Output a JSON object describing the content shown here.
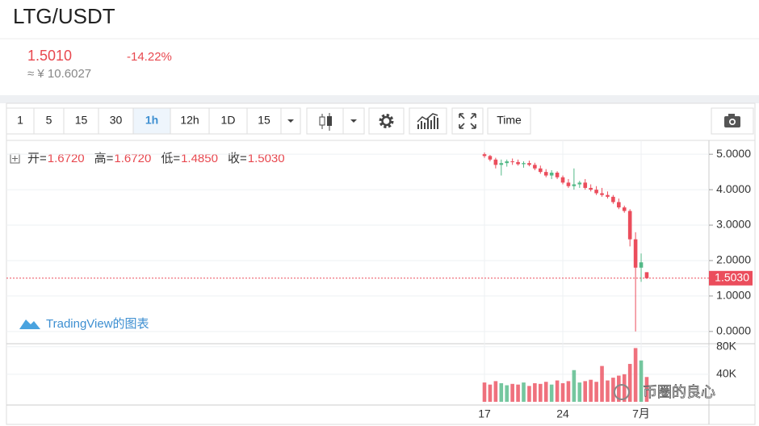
{
  "header": {
    "title": "LTG/USDT",
    "price": "1.5010",
    "change": "-14.22%",
    "fiat": "≈ ¥ 10.6027"
  },
  "toolbar": {
    "intervals": [
      "1",
      "5",
      "15",
      "30",
      "1h",
      "12h",
      "1D",
      "15"
    ],
    "active": 4,
    "time_button": "Time"
  },
  "ohlc_legend": {
    "open_label": "开=",
    "open": "1.6720",
    "high_label": "高=",
    "high": "1.6720",
    "low_label": "低=",
    "low": "1.4850",
    "close_label": "收=",
    "close": "1.5030"
  },
  "watermark": "TradingView的图表",
  "wechat_mark": "币圈的良心",
  "chart_data": {
    "type": "candlestick",
    "categories": [
      "17",
      null,
      null,
      null,
      null,
      null,
      null,
      null,
      null,
      null,
      null,
      null,
      null,
      null,
      "24",
      null,
      null,
      null,
      null,
      null,
      null,
      null,
      null,
      null,
      null,
      null,
      null,
      null,
      "7月",
      null
    ],
    "open": [
      5.0,
      4.95,
      4.85,
      4.7,
      4.75,
      4.8,
      4.78,
      4.72,
      4.75,
      4.7,
      4.6,
      4.5,
      4.4,
      4.48,
      4.35,
      4.2,
      4.1,
      4.15,
      4.2,
      4.05,
      4.0,
      3.9,
      3.85,
      3.8,
      3.65,
      3.5,
      3.4,
      2.6,
      1.8,
      1.672
    ],
    "high": [
      5.05,
      4.98,
      4.9,
      4.85,
      4.85,
      4.88,
      4.85,
      4.8,
      4.82,
      4.76,
      4.68,
      4.58,
      4.55,
      4.52,
      4.4,
      4.3,
      4.6,
      4.25,
      4.3,
      4.15,
      4.1,
      4.05,
      3.95,
      3.85,
      3.75,
      3.55,
      3.45,
      2.8,
      2.2,
      1.672
    ],
    "low": [
      4.9,
      4.8,
      4.6,
      4.4,
      4.65,
      4.7,
      4.68,
      4.62,
      4.66,
      4.55,
      4.45,
      4.35,
      4.3,
      4.3,
      4.15,
      4.05,
      4.0,
      4.05,
      4.0,
      3.95,
      3.85,
      3.8,
      3.75,
      3.6,
      3.45,
      3.35,
      2.4,
      0.0,
      1.4,
      1.485
    ],
    "close": [
      4.95,
      4.85,
      4.7,
      4.75,
      4.8,
      4.78,
      4.72,
      4.75,
      4.7,
      4.6,
      4.5,
      4.4,
      4.48,
      4.35,
      4.2,
      4.1,
      4.15,
      4.2,
      4.05,
      4.0,
      3.9,
      3.85,
      3.8,
      3.65,
      3.5,
      3.4,
      2.6,
      1.8,
      1.95,
      1.503
    ],
    "volume": [
      28000,
      25000,
      30000,
      27000,
      24000,
      26000,
      25000,
      28000,
      23000,
      27000,
      26000,
      29000,
      25000,
      31000,
      27000,
      30000,
      46000,
      28000,
      30000,
      32000,
      29000,
      52000,
      31000,
      35000,
      38000,
      40000,
      55000,
      78000,
      60000,
      36000
    ],
    "up_color": "#53b987",
    "down_color": "#eb4d5c",
    "ylim": [
      -0.3,
      5.3
    ],
    "yticks": [
      {
        "value": 5,
        "label": "5.0000"
      },
      {
        "value": 4,
        "label": "4.0000"
      },
      {
        "value": 3,
        "label": "3.0000"
      },
      {
        "value": 2,
        "label": "2.0000"
      },
      {
        "value": 1,
        "label": "1.0000"
      },
      {
        "value": 0,
        "label": "0.0000"
      }
    ],
    "last_price": {
      "value": 1.503,
      "label": "1.5030"
    },
    "vlim": [
      0,
      82000
    ],
    "vticks": [
      {
        "value": 80000,
        "label": "80K"
      },
      {
        "value": 40000,
        "label": "40K"
      }
    ],
    "grid": true
  }
}
